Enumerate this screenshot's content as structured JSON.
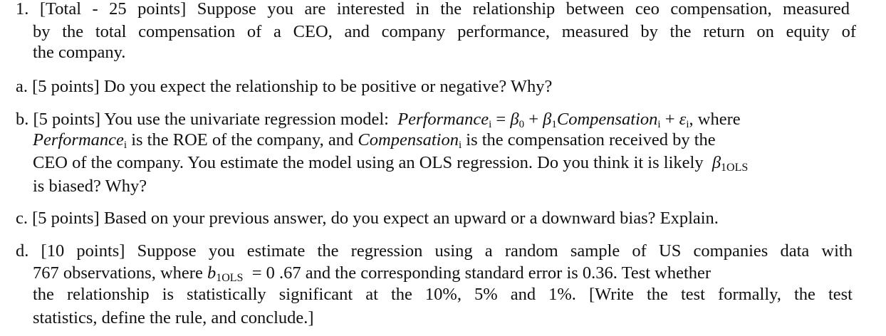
{
  "q1": {
    "l1": "1. [Total - 25 points] Suppose you are interested in the relationship between ceo compensation, measured",
    "l2": "by the total compensation of a CEO, and company performance, measured by the return on equity of",
    "l3": "the company."
  },
  "a": {
    "l1": "a. [5 points] Do you expect the relationship to be positive or negative? Why?"
  },
  "b": {
    "l1_text": "b. [5 points] You use the univariate regression model:",
    "perf": "Performance",
    "i": "i",
    "eq": "=",
    "beta": "β",
    "zero": "0",
    "plus": "+",
    "one": "1",
    "comp": "Compensation",
    "eps": "ε",
    "where": ", where",
    "l2_text": "is the ROE of the company, and",
    "l2_end": "is the compensation received by the",
    "l3_text": "CEO of the company. You estimate the model using an OLS regression. Do you think it is likely",
    "ols_sub": "1OLS",
    "l4": "is biased? Why?"
  },
  "c": {
    "l1": "c. [5 points] Based on your previous answer, do you expect an upward or a downward bias? Explain."
  },
  "d": {
    "l1": "d. [10 points] Suppose you estimate the regression using a random sample of US companies data with",
    "l2_a": "767 observations, where",
    "b_sym": "b",
    "b_sub": "1OLS",
    "l2_b": "= 0 .67 and the corresponding standard error is 0.36. Test whether",
    "l3": "the relationship is statistically significant at the 10%, 5% and 1%. [Write the test formally, the test",
    "l4": "statistics, define the rule, and conclude.]"
  }
}
